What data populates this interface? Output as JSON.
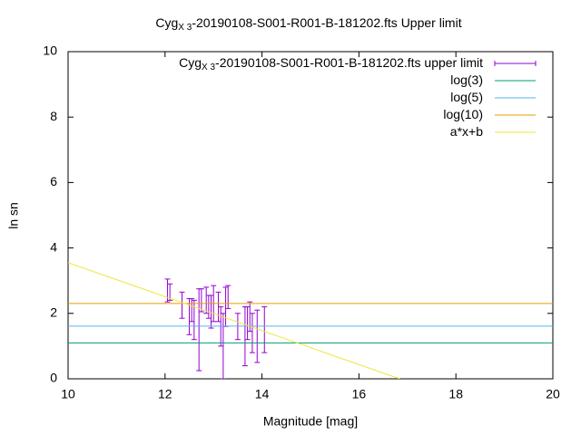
{
  "chart_data": {
    "type": "errorbar",
    "title": [
      "Cyg",
      "X 3",
      "-20190108-S001-R001-B-181202.fts Upper limit"
    ],
    "x_label": "Magnitude [mag]",
    "y_label": "ln sn",
    "xlim": [
      10,
      20
    ],
    "ylim": [
      0,
      10
    ],
    "xticks": [
      10,
      12,
      14,
      16,
      18,
      20
    ],
    "yticks": [
      0,
      2,
      4,
      6,
      8,
      10
    ],
    "grid": false,
    "legend": "top-right",
    "series": [
      {
        "name": [
          "Cyg",
          "X 3",
          "-20190108-S001-R001-B-181202.fts upper limit"
        ],
        "style": "errorbars",
        "color": "#9400d3",
        "x": [
          12.05,
          12.1,
          12.35,
          12.5,
          12.55,
          12.6,
          12.7,
          12.75,
          12.85,
          12.9,
          12.95,
          13.0,
          13.1,
          13.15,
          13.2,
          13.25,
          13.3,
          13.5,
          13.65,
          13.7,
          13.75,
          13.8,
          13.9,
          14.05
        ],
        "values": [
          2.7,
          2.65,
          2.25,
          1.9,
          2.1,
          1.8,
          1.5,
          2.4,
          2.4,
          2.2,
          2.05,
          2.3,
          2.2,
          1.6,
          1.0,
          2.2,
          2.5,
          1.6,
          1.3,
          1.7,
          1.9,
          1.4,
          1.3,
          1.5
        ],
        "errors": [
          0.35,
          0.25,
          0.4,
          0.55,
          0.35,
          0.6,
          1.25,
          0.35,
          0.4,
          0.35,
          0.5,
          0.55,
          0.45,
          0.6,
          1.0,
          0.6,
          0.35,
          0.4,
          0.9,
          0.5,
          0.45,
          0.6,
          0.8,
          0.7
        ]
      },
      {
        "name": [
          "log(3)"
        ],
        "style": "lines",
        "color": "#009e73",
        "x": [
          10,
          20
        ],
        "values": [
          1.0986,
          1.0986
        ]
      },
      {
        "name": [
          "log(5)"
        ],
        "style": "lines",
        "color": "#56b4e9",
        "x": [
          10,
          20
        ],
        "values": [
          1.6094,
          1.6094
        ]
      },
      {
        "name": [
          "log(10)"
        ],
        "style": "lines",
        "color": "#e69f00",
        "x": [
          10,
          20
        ],
        "values": [
          2.3026,
          2.3026
        ]
      },
      {
        "name": [
          "a*x+b"
        ],
        "style": "lines",
        "color": "#f0e442",
        "x": [
          10,
          16.84
        ],
        "values": [
          3.55,
          0
        ]
      }
    ]
  }
}
